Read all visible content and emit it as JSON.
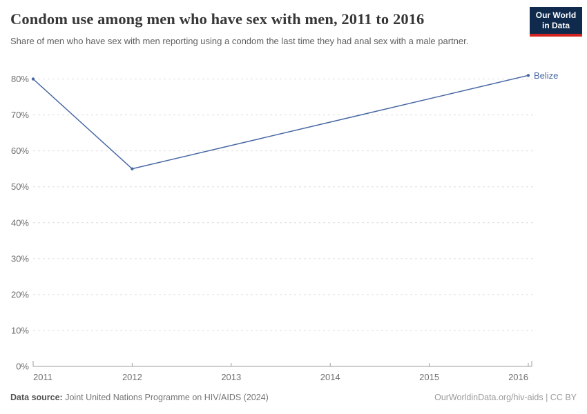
{
  "header": {
    "title": "Condom use among men who have sex with men, 2011 to 2016",
    "subtitle": "Share of men who have sex with men reporting using a condom the last time they had anal sex with a male partner.",
    "logo": {
      "line1": "Our World",
      "line2": "in Data"
    }
  },
  "chart_data": {
    "type": "line",
    "title": "Condom use among men who have sex with men, 2011 to 2016",
    "xlabel": "",
    "ylabel": "",
    "xlim": [
      2011,
      2016
    ],
    "ylim": [
      0,
      80
    ],
    "x_ticks": [
      2011,
      2012,
      2013,
      2014,
      2015,
      2016
    ],
    "x_tick_labels": [
      "2011",
      "2012",
      "2013",
      "2014",
      "2015",
      "2016"
    ],
    "y_ticks": [
      0,
      10,
      20,
      30,
      40,
      50,
      60,
      70,
      80
    ],
    "y_tick_labels": [
      "0%",
      "10%",
      "20%",
      "30%",
      "40%",
      "50%",
      "60%",
      "70%",
      "80%"
    ],
    "grid": "horizontal-dashed",
    "legend_position": "end-of-line-label",
    "series": [
      {
        "name": "Belize",
        "color": "#4868a3",
        "points": [
          {
            "x": 2011,
            "y": 80
          },
          {
            "x": 2012,
            "y": 55
          },
          {
            "x": 2016,
            "y": 81
          }
        ]
      }
    ]
  },
  "footer": {
    "source_label": "Data source:",
    "source_text": "Joint United Nations Programme on HIV/AIDS (2024)",
    "credit": "OurWorldinData.org/hiv-aids | CC BY"
  },
  "colors": {
    "series_blue": "#4868a3",
    "grid": "#dcdcdc",
    "axis": "#9e9e9e",
    "tick_text": "#6e6e6e",
    "logo_navy": "#102a4d",
    "logo_red": "#d2231e"
  }
}
